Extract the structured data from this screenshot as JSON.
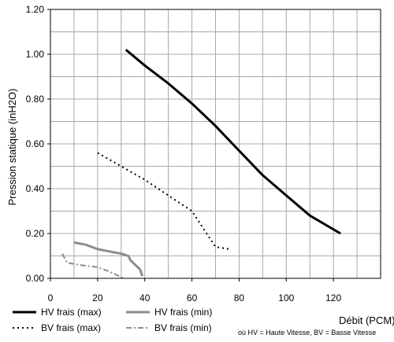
{
  "chart_data": {
    "type": "line",
    "title": "",
    "xlabel": "Débit (PCM)",
    "ylabel": "Pression statique (inH2O)",
    "xlim": [
      0,
      140
    ],
    "ylim": [
      0,
      1.2
    ],
    "x_ticks": [
      "0",
      "20",
      "40",
      "60",
      "80",
      "100",
      "120"
    ],
    "y_ticks": [
      "0.00",
      "0.20",
      "0.40",
      "0.60",
      "0.80",
      "1.00",
      "1.20"
    ],
    "x_tick_values": [
      0,
      20,
      40,
      60,
      80,
      100,
      120
    ],
    "y_tick_values": [
      0,
      0.2,
      0.4,
      0.6,
      0.8,
      1.0,
      1.2
    ],
    "grid": true,
    "legend_position": "bottom",
    "note": "où HV = Haute Vitesse, BV = Basse Vitesse",
    "series": [
      {
        "name": "HV frais (max)",
        "style": "solid",
        "color": "#000000",
        "width": 3,
        "points": [
          [
            32,
            1.02
          ],
          [
            40,
            0.95
          ],
          [
            50,
            0.87
          ],
          [
            60,
            0.78
          ],
          [
            70,
            0.68
          ],
          [
            80,
            0.57
          ],
          [
            90,
            0.46
          ],
          [
            100,
            0.37
          ],
          [
            110,
            0.28
          ],
          [
            123,
            0.2
          ]
        ]
      },
      {
        "name": "BV frais (max)",
        "style": "dotted",
        "color": "#000000",
        "width": 2,
        "points": [
          [
            20,
            0.56
          ],
          [
            30,
            0.5
          ],
          [
            40,
            0.44
          ],
          [
            50,
            0.37
          ],
          [
            60,
            0.3
          ],
          [
            65,
            0.22
          ],
          [
            70,
            0.14
          ],
          [
            76,
            0.13
          ]
        ]
      },
      {
        "name": "HV frais (min)",
        "style": "solid",
        "color": "#8c8c8c",
        "width": 3,
        "points": [
          [
            10,
            0.16
          ],
          [
            15,
            0.15
          ],
          [
            20,
            0.13
          ],
          [
            25,
            0.12
          ],
          [
            30,
            0.11
          ],
          [
            33,
            0.1
          ],
          [
            34,
            0.08
          ],
          [
            36,
            0.06
          ],
          [
            38,
            0.04
          ],
          [
            39,
            0.01
          ]
        ]
      },
      {
        "name": "BV frais (min)",
        "style": "dashdot",
        "color": "#8c8c8c",
        "width": 2,
        "points": [
          [
            5,
            0.11
          ],
          [
            7,
            0.07
          ],
          [
            12,
            0.06
          ],
          [
            20,
            0.05
          ],
          [
            25,
            0.03
          ],
          [
            29,
            0.01
          ],
          [
            31,
            0.0
          ]
        ]
      }
    ]
  }
}
